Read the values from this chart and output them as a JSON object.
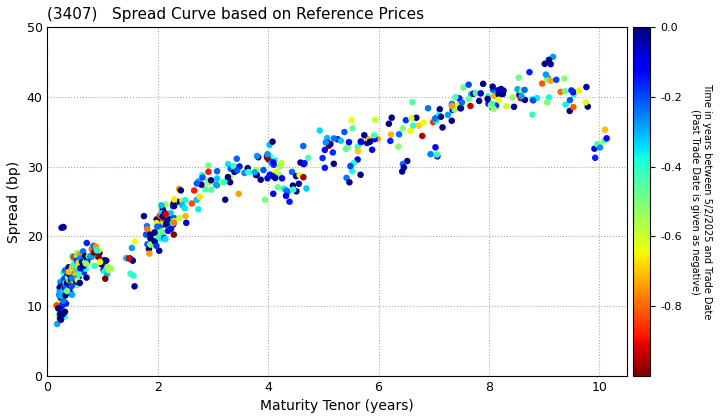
{
  "title": "(3407)   Spread Curve based on Reference Prices",
  "xlabel": "Maturity Tenor (years)",
  "ylabel": "Spread (bp)",
  "colorbar_label": "Time in years between 5/2/2025 and Trade Date\n(Past Trade Date is given as negative)",
  "colorbar_ticks": [
    0.0,
    -0.2,
    -0.4,
    -0.6,
    -0.8
  ],
  "xlim": [
    0,
    10.5
  ],
  "ylim": [
    0,
    50
  ],
  "xticks": [
    0,
    2,
    4,
    6,
    8,
    10
  ],
  "yticks": [
    0,
    10,
    20,
    30,
    40,
    50
  ],
  "vmin": -1.0,
  "vmax": 0.0,
  "marker_size": 22,
  "background_color": "#ffffff",
  "grid_color": "#aaaaaa"
}
